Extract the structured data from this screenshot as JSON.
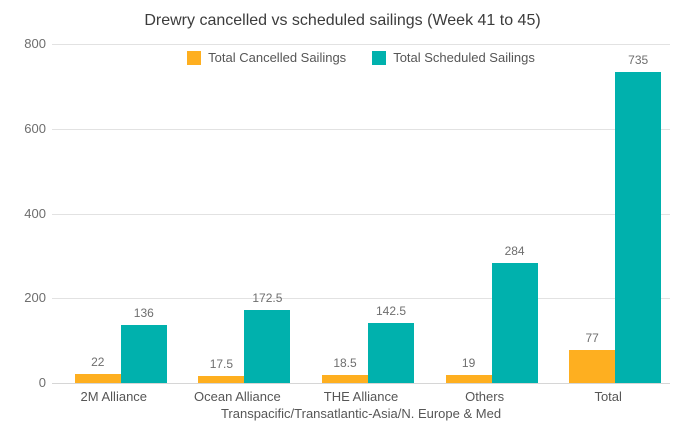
{
  "chart_data": {
    "type": "bar",
    "title": "Drewry cancelled vs scheduled sailings (Week 41 to 45)",
    "categories": [
      "2M Alliance",
      "Ocean Alliance",
      "THE Alliance",
      "Others",
      "Total"
    ],
    "series": [
      {
        "name": "Total Cancelled Sailings",
        "color": "#FEAF20",
        "values": [
          22,
          17.5,
          18.5,
          19,
          77
        ]
      },
      {
        "name": "Total Scheduled Sailings",
        "color": "#00B1AD",
        "values": [
          136,
          172.5,
          142.5,
          284,
          735
        ]
      }
    ],
    "xlabel": "Transpacific/Transatlantic-Asia/N. Europe & Med",
    "ylabel": "",
    "ylim": [
      0,
      800
    ],
    "yticks": [
      0,
      200,
      400,
      600,
      800
    ],
    "grid": true,
    "legend_position": "top",
    "value_labels": true
  }
}
